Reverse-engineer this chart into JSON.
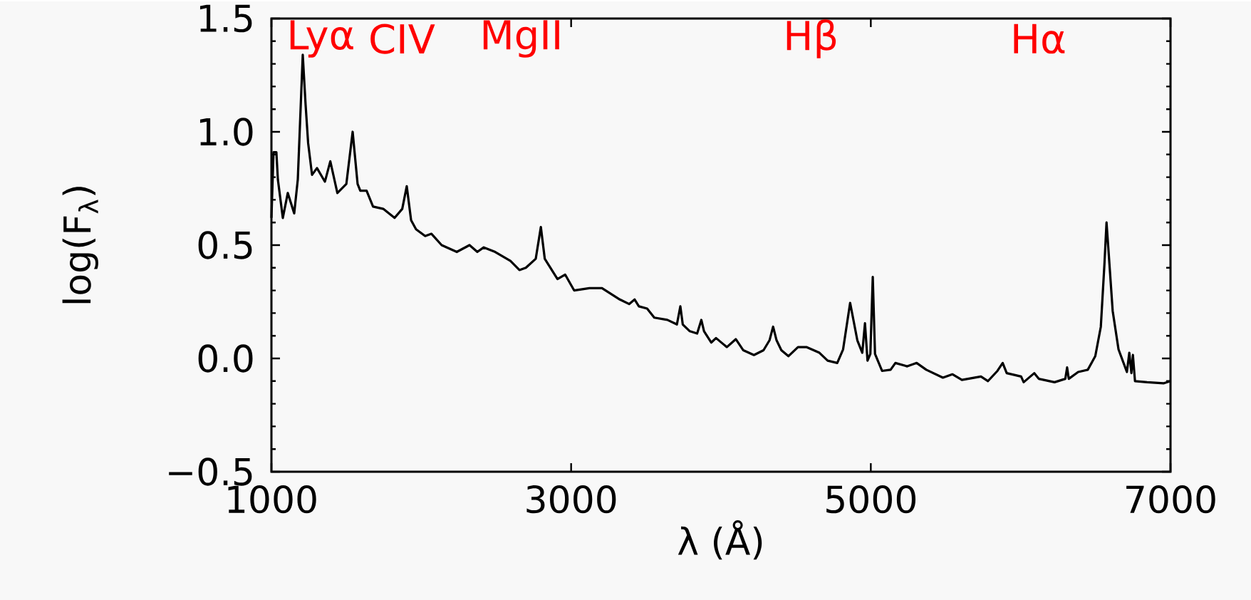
{
  "chart_data": {
    "type": "line",
    "xlabel": "λ  (Å)",
    "ylabel": "log(F$_{λ}$)",
    "xlim": [
      1000,
      7000
    ],
    "ylim": [
      -0.5,
      1.5
    ],
    "xticks": [
      1000,
      3000,
      5000,
      7000
    ],
    "yticks": [
      {
        "value": -0.5,
        "label": "−0.5"
      },
      {
        "value": 0,
        "label": "0.0"
      },
      {
        "value": 0.5,
        "label": "0.5"
      },
      {
        "value": 1,
        "label": "1.0"
      },
      {
        "value": 1.5,
        "label": "1.5"
      }
    ],
    "grid": false,
    "annotations": [
      "Lyα",
      "CIV",
      "MgII",
      "Hβ",
      "Hα"
    ],
    "series": [
      {
        "color": "#000000",
        "x": [
          1000,
          1014,
          1033,
          1043,
          1076,
          1109,
          1152,
          1176,
          1209,
          1228,
          1245,
          1271,
          1304,
          1357,
          1393,
          1440,
          1500,
          1542,
          1575,
          1593,
          1635,
          1678,
          1746,
          1822,
          1873,
          1903,
          1932,
          1965,
          2026,
          2068,
          2136,
          2237,
          2322,
          2374,
          2417,
          2493,
          2595,
          2655,
          2698,
          2764,
          2798,
          2824,
          2909,
          2960,
          3020,
          3122,
          3206,
          3325,
          3387,
          3424,
          3452,
          3507,
          3555,
          3642,
          3706,
          3729,
          3745,
          3792,
          3841,
          3869,
          3887,
          3935,
          3967,
          4039,
          4099,
          4149,
          4220,
          4284,
          4324,
          4348,
          4371,
          4403,
          4450,
          4514,
          4570,
          4657,
          4712,
          4776,
          4815,
          4862,
          4910,
          4943,
          4961,
          4978,
          4997,
          5013,
          5028,
          5075,
          5132,
          5164,
          5243,
          5306,
          5370,
          5481,
          5544,
          5608,
          5735,
          5782,
          5845,
          5880,
          5907,
          6003,
          6020,
          6091,
          6121,
          6226,
          6298,
          6310,
          6321,
          6384,
          6448,
          6498,
          6535,
          6559,
          6573,
          6590,
          6614,
          6653,
          6709,
          6725,
          6739,
          6749,
          6763,
          6844,
          6953,
          7000
        ],
        "values": [
          0.62,
          0.91,
          0.91,
          0.79,
          0.62,
          0.73,
          0.64,
          0.79,
          1.34,
          1.12,
          0.95,
          0.81,
          0.84,
          0.78,
          0.87,
          0.73,
          0.77,
          1.0,
          0.77,
          0.74,
          0.74,
          0.67,
          0.66,
          0.62,
          0.66,
          0.76,
          0.61,
          0.57,
          0.54,
          0.55,
          0.5,
          0.47,
          0.5,
          0.47,
          0.49,
          0.47,
          0.43,
          0.39,
          0.4,
          0.44,
          0.58,
          0.44,
          0.35,
          0.37,
          0.3,
          0.31,
          0.31,
          0.26,
          0.24,
          0.26,
          0.23,
          0.22,
          0.18,
          0.17,
          0.15,
          0.23,
          0.15,
          0.12,
          0.11,
          0.17,
          0.12,
          0.07,
          0.09,
          0.05,
          0.085,
          0.036,
          0.015,
          0.036,
          0.08,
          0.14,
          0.08,
          0.036,
          0.01,
          0.05,
          0.05,
          0.025,
          -0.01,
          -0.02,
          0.04,
          0.245,
          0.08,
          0.025,
          0.155,
          -0.01,
          0.02,
          0.36,
          0.02,
          -0.055,
          -0.05,
          -0.02,
          -0.035,
          -0.02,
          -0.05,
          -0.085,
          -0.07,
          -0.095,
          -0.08,
          -0.1,
          -0.055,
          -0.02,
          -0.065,
          -0.08,
          -0.105,
          -0.065,
          -0.09,
          -0.105,
          -0.09,
          -0.04,
          -0.09,
          -0.06,
          -0.05,
          0.01,
          0.14,
          0.415,
          0.6,
          0.44,
          0.21,
          0.04,
          -0.06,
          0.025,
          -0.065,
          0.015,
          -0.1,
          -0.105,
          -0.11,
          -0.1
        ]
      }
    ]
  }
}
